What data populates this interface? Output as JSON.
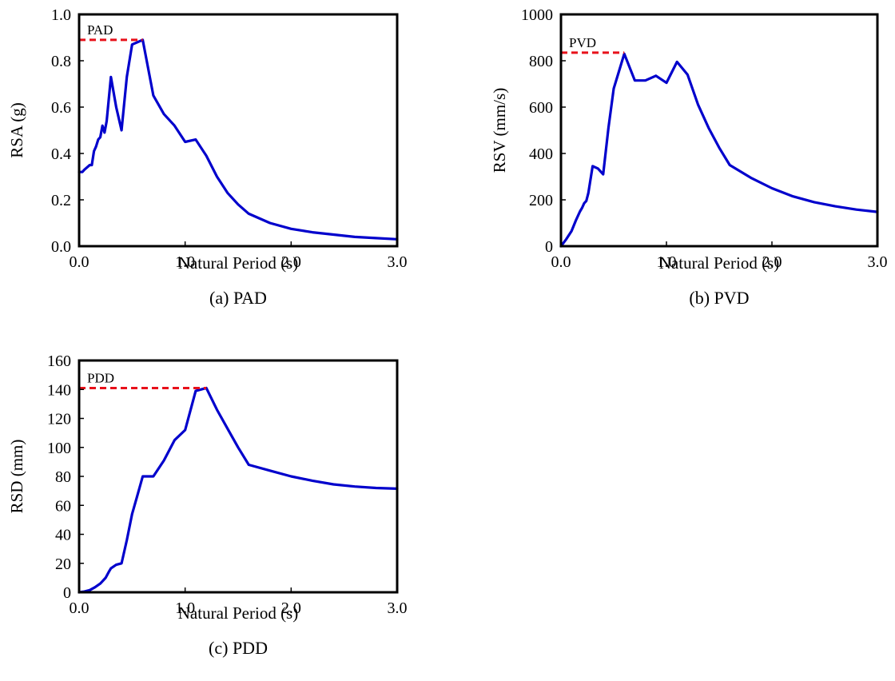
{
  "colors": {
    "series": "#0000cc",
    "reference": "#e8101a",
    "axes": "#000000"
  },
  "chart_data": [
    {
      "type": "line",
      "caption": "(a)  PAD",
      "xlabel": "Natural Period (s)",
      "ylabel": "RSA (g)",
      "xlim": [
        0,
        3.0
      ],
      "ylim": [
        0,
        1.0
      ],
      "xticks": [
        {
          "v": 0,
          "label": "0.0"
        },
        {
          "v": 1,
          "label": "1.0"
        },
        {
          "v": 2,
          "label": "2.0"
        },
        {
          "v": 3,
          "label": "3.0"
        }
      ],
      "yticks": [
        {
          "v": 0,
          "label": "0.0"
        },
        {
          "v": 0.2,
          "label": "0.2"
        },
        {
          "v": 0.4,
          "label": "0.4"
        },
        {
          "v": 0.6,
          "label": "0.6"
        },
        {
          "v": 0.8,
          "label": "0.8"
        },
        {
          "v": 1.0,
          "label": "1.0"
        }
      ],
      "grid": false,
      "series": [
        {
          "x": [
            0,
            0.03,
            0.05,
            0.1,
            0.12,
            0.14,
            0.16,
            0.18,
            0.2,
            0.22,
            0.24,
            0.26,
            0.3,
            0.35,
            0.4,
            0.45,
            0.5,
            0.55,
            0.6,
            0.7,
            0.8,
            0.9,
            1.0,
            1.1,
            1.2,
            1.3,
            1.4,
            1.5,
            1.6,
            1.8,
            2.0,
            2.2,
            2.4,
            2.6,
            2.8,
            3.0
          ],
          "y": [
            0.32,
            0.32,
            0.33,
            0.35,
            0.35,
            0.41,
            0.43,
            0.46,
            0.47,
            0.52,
            0.49,
            0.54,
            0.73,
            0.6,
            0.5,
            0.73,
            0.87,
            0.88,
            0.89,
            0.65,
            0.57,
            0.52,
            0.45,
            0.46,
            0.39,
            0.3,
            0.23,
            0.18,
            0.14,
            0.1,
            0.075,
            0.06,
            0.05,
            0.04,
            0.035,
            0.03
          ]
        }
      ],
      "reference": {
        "label": "PAD",
        "y": 0.89,
        "x_end": 0.6
      }
    },
    {
      "type": "line",
      "caption": "(b)  PVD",
      "xlabel": "Natural Period (s)",
      "ylabel": "RSV (mm/s)",
      "xlim": [
        0,
        3.0
      ],
      "ylim": [
        0,
        1000
      ],
      "xticks": [
        {
          "v": 0,
          "label": "0.0"
        },
        {
          "v": 1,
          "label": "1.0"
        },
        {
          "v": 2,
          "label": "2.0"
        },
        {
          "v": 3,
          "label": "3.0"
        }
      ],
      "yticks": [
        {
          "v": 0,
          "label": "0"
        },
        {
          "v": 200,
          "label": "200"
        },
        {
          "v": 400,
          "label": "400"
        },
        {
          "v": 600,
          "label": "600"
        },
        {
          "v": 800,
          "label": "800"
        },
        {
          "v": 1000,
          "label": "1000"
        }
      ],
      "grid": false,
      "series": [
        {
          "x": [
            0,
            0.05,
            0.1,
            0.14,
            0.18,
            0.2,
            0.22,
            0.24,
            0.26,
            0.3,
            0.35,
            0.4,
            0.45,
            0.5,
            0.55,
            0.6,
            0.7,
            0.8,
            0.9,
            1.0,
            1.1,
            1.2,
            1.3,
            1.4,
            1.5,
            1.6,
            1.8,
            2.0,
            2.2,
            2.4,
            2.6,
            2.8,
            3.0
          ],
          "y": [
            0,
            30,
            65,
            110,
            150,
            165,
            185,
            195,
            230,
            345,
            335,
            310,
            510,
            680,
            755,
            830,
            715,
            715,
            735,
            705,
            795,
            740,
            610,
            510,
            425,
            350,
            295,
            250,
            215,
            190,
            172,
            158,
            148
          ]
        }
      ],
      "reference": {
        "label": "PVD",
        "y": 835,
        "x_end": 0.6
      }
    },
    {
      "type": "line",
      "caption": "(c)  PDD",
      "xlabel": "Natural Period (s)",
      "ylabel": "RSD (mm)",
      "xlim": [
        0,
        3.0
      ],
      "ylim": [
        0,
        160
      ],
      "xticks": [
        {
          "v": 0,
          "label": "0.0"
        },
        {
          "v": 1,
          "label": "1.0"
        },
        {
          "v": 2,
          "label": "2.0"
        },
        {
          "v": 3,
          "label": "3.0"
        }
      ],
      "yticks": [
        {
          "v": 0,
          "label": "0"
        },
        {
          "v": 20,
          "label": "20"
        },
        {
          "v": 40,
          "label": "40"
        },
        {
          "v": 60,
          "label": "60"
        },
        {
          "v": 80,
          "label": "80"
        },
        {
          "v": 100,
          "label": "100"
        },
        {
          "v": 120,
          "label": "120"
        },
        {
          "v": 140,
          "label": "140"
        },
        {
          "v": 160,
          "label": "160"
        }
      ],
      "grid": false,
      "series": [
        {
          "x": [
            0,
            0.05,
            0.1,
            0.15,
            0.2,
            0.25,
            0.28,
            0.3,
            0.35,
            0.4,
            0.45,
            0.5,
            0.55,
            0.6,
            0.7,
            0.8,
            0.9,
            1.0,
            1.1,
            1.2,
            1.3,
            1.4,
            1.5,
            1.6,
            1.8,
            2.0,
            2.2,
            2.4,
            2.6,
            2.8,
            3.0
          ],
          "y": [
            0,
            0.5,
            1.5,
            3.5,
            6,
            10,
            14,
            16.5,
            19,
            20,
            36,
            54,
            67,
            80,
            80,
            91,
            105,
            112,
            139,
            141,
            126,
            113,
            100,
            88,
            84,
            80,
            77,
            74.5,
            73,
            72,
            71.5
          ]
        }
      ],
      "reference": {
        "label": "PDD",
        "y": 141,
        "x_end": 1.2
      }
    }
  ]
}
